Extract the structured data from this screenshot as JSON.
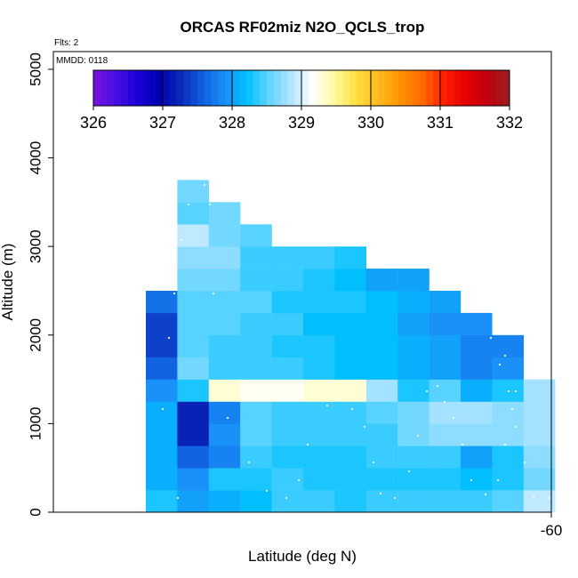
{
  "chart_data": {
    "type": "heatmap",
    "title": "ORCAS RF02miz N2O_QCLS_trop",
    "flights_note": "Flts: 2",
    "date_note": "MMDD: 0118",
    "xlabel": "Latitude (deg N)",
    "ylabel": "Altitude (m)",
    "x_tick_labels": [
      "-60"
    ],
    "y_ticks": [
      0,
      1000,
      2000,
      3000,
      4000,
      5000
    ],
    "ylim": [
      0,
      5200
    ],
    "colorbar": {
      "range": [
        326,
        332
      ],
      "ticks": [
        326,
        327,
        328,
        329,
        330,
        331,
        332
      ],
      "colors": [
        "#7a12e0",
        "#4a10e0",
        "#1a00d8",
        "#0000b0",
        "#0a2ab8",
        "#1060e0",
        "#1a90f8",
        "#00c0ff",
        "#60d4ff",
        "#b0e4ff",
        "#ffffff",
        "#fffaa0",
        "#ffe040",
        "#ffba20",
        "#ff9400",
        "#ff6a00",
        "#ff2000",
        "#e40000",
        "#c00010",
        "#9a2020"
      ]
    },
    "cell_values": [
      {
        "col": 1,
        "rows": [
          328.3,
          328.1,
          328.1,
          328.1,
          328.1,
          327.9,
          327.6,
          327.4,
          327.4,
          327.7
        ]
      },
      {
        "col": 2,
        "rows": [
          328.0,
          327.9,
          327.6,
          327.2,
          327.2,
          328.3,
          328.6,
          328.5,
          328.5,
          328.5,
          328.6,
          328.7,
          328.9,
          328.5,
          328.6,
          328.7
        ]
      },
      {
        "col": 3,
        "rows": [
          328.1,
          328.3,
          327.8,
          327.9,
          327.8,
          329.3,
          328.4,
          328.4,
          328.5,
          328.5,
          328.6,
          328.7,
          328.6,
          328.6
        ]
      },
      {
        "col": 4,
        "rows": [
          328.2,
          328.3,
          328.4,
          328.5,
          328.5,
          329.2,
          328.4,
          328.4,
          328.4,
          328.5,
          328.4,
          328.4,
          328.5
        ]
      },
      {
        "col": 5,
        "rows": [
          328.4,
          328.4,
          328.3,
          328.4,
          328.4,
          329.2,
          328.4,
          328.3,
          328.4,
          328.3,
          328.4,
          328.4
        ]
      },
      {
        "col": 6,
        "rows": [
          328.4,
          328.3,
          328.3,
          328.4,
          328.4,
          329.3,
          328.3,
          328.3,
          328.2,
          328.3,
          328.3,
          328.4
        ]
      },
      {
        "col": 7,
        "rows": [
          328.3,
          328.3,
          328.3,
          328.4,
          328.4,
          329.3,
          328.2,
          328.2,
          328.2,
          328.3,
          328.2,
          328.3
        ]
      },
      {
        "col": 8,
        "rows": [
          328.4,
          328.3,
          328.4,
          328.4,
          328.5,
          328.8,
          328.2,
          328.2,
          328.2,
          328.2,
          328.0
        ]
      },
      {
        "col": 9,
        "rows": [
          328.4,
          328.3,
          328.4,
          328.6,
          328.6,
          328.3,
          328.1,
          328.1,
          328.0,
          328.1,
          328.0
        ]
      },
      {
        "col": 10,
        "rows": [
          328.4,
          328.3,
          328.4,
          328.7,
          328.8,
          328.5,
          328.0,
          328.0,
          327.9,
          328.0
        ]
      },
      {
        "col": 11,
        "rows": [
          328.4,
          328.2,
          328.0,
          328.7,
          328.8,
          328.1,
          327.8,
          327.8,
          327.9
        ]
      },
      {
        "col": 12,
        "rows": [
          328.5,
          328.3,
          328.3,
          328.7,
          328.7,
          328.3,
          327.9,
          327.8
        ]
      },
      {
        "col": 13,
        "rows": [
          328.9,
          328.6,
          328.7,
          328.8,
          328.8,
          328.8
        ]
      }
    ]
  }
}
